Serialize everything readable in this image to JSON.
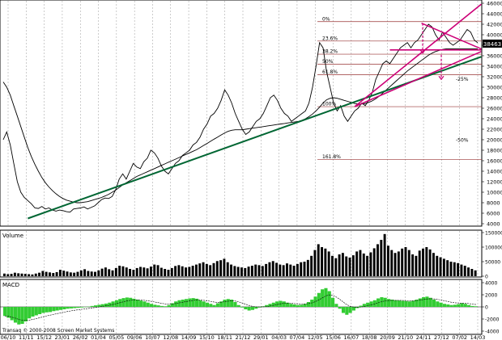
{
  "chart_data": [
    {
      "type": "line",
      "panel": "price",
      "title": "",
      "ylim": [
        4000,
        46000
      ],
      "yticks": [
        4000,
        6000,
        8000,
        10000,
        12000,
        14000,
        16000,
        18000,
        20000,
        22000,
        24000,
        26000,
        28000,
        30000,
        32000,
        34000,
        36000,
        38000,
        40000,
        42000,
        44000,
        46000
      ],
      "last_value_badge": "38463",
      "grid": true,
      "series": [
        {
          "values": [
            20000,
            21500,
            19000,
            15500,
            12000,
            10000,
            9000,
            8400,
            7800,
            7000,
            6900,
            7300,
            6800,
            7000,
            6600,
            6400,
            6600,
            6500,
            6300,
            6200,
            6800,
            6900,
            7000,
            7200,
            6800,
            7100,
            7400,
            8000,
            8600,
            8900,
            8800,
            9200,
            10500,
            12500,
            13500,
            12500,
            14000,
            15500,
            14800,
            14500,
            15800,
            16500,
            18000,
            17500,
            16500,
            15000,
            14000,
            13500,
            14500,
            15500,
            16000,
            17000,
            17500,
            18000,
            19000,
            19500,
            20500,
            22000,
            23000,
            24500,
            25000,
            26000,
            27500,
            29500,
            28500,
            27000,
            25000,
            23500,
            22000,
            21000,
            21500,
            22500,
            23500,
            24000,
            25000,
            26500,
            28000,
            28500,
            27500,
            26000,
            25000,
            24500,
            23500,
            24000,
            24500,
            25000,
            25500,
            27000,
            30000,
            34000,
            38500,
            37500,
            33000,
            30000,
            27000,
            25500,
            26500,
            24500,
            23500,
            24500,
            25500,
            26000,
            27000,
            26500,
            27500,
            29000,
            31500,
            33000,
            34500,
            35000,
            34500,
            35500,
            36500,
            37500,
            38000,
            38500,
            37500,
            38500,
            39000,
            40000,
            41000,
            42000,
            41500,
            40000,
            39000,
            40500,
            39500,
            38500,
            38000,
            38500,
            39000,
            40000,
            41000,
            40500,
            39000,
            38463
          ]
        },
        {
          "values": [
            31000,
            30000,
            28500,
            26500,
            24500,
            22500,
            20500,
            18500,
            16800,
            15300,
            14000,
            12800,
            11800,
            11000,
            10300,
            9700,
            9200,
            8800,
            8500,
            8300,
            8100,
            8000,
            8000,
            8100,
            8200,
            8400,
            8600,
            8800,
            9000,
            9300,
            9600,
            10000,
            10400,
            10900,
            11400,
            11800,
            12200,
            12600,
            13000,
            13300,
            13600,
            13900,
            14200,
            14500,
            14800,
            15100,
            15400,
            15700,
            16000,
            16300,
            16600,
            16900,
            17200,
            17500,
            17800,
            18100,
            18500,
            18900,
            19300,
            19700,
            20100,
            20500,
            20900,
            21300,
            21600,
            21800,
            21900,
            21900,
            21900,
            22000,
            22100,
            22200,
            22300,
            22400,
            22500,
            22600,
            22700,
            22800,
            22900,
            23000,
            23100,
            23200,
            23300,
            23400,
            23500,
            23700,
            24000,
            24400,
            24900,
            25500,
            26200,
            27000,
            27600,
            27900,
            28000,
            27900,
            27700,
            27500,
            27300,
            27100,
            26900,
            26800,
            26800,
            26900,
            27100,
            27400,
            27800,
            28300,
            28900,
            29500,
            30100,
            30700,
            31300,
            31900,
            32500,
            33100,
            33600,
            34100,
            34600,
            35100,
            35600,
            36100,
            36500,
            36800,
            37000,
            37200,
            37300,
            37300,
            37300,
            37300,
            37300,
            37300,
            37300,
            37300,
            37300,
            37300
          ]
        }
      ],
      "fibonacci_levels": [
        {
          "label": "0%",
          "value": 42500
        },
        {
          "label": "23.6%",
          "value": 38800
        },
        {
          "label": "38.2%",
          "value": 36300
        },
        {
          "label": "50%",
          "value": 34400
        },
        {
          "label": "61.8%",
          "value": 32400
        },
        {
          "label": "100%",
          "value": 26300
        },
        {
          "label": "161.8%",
          "value": 16200
        }
      ],
      "annotations": [
        "-25%",
        "-50%"
      ],
      "trendlines": [
        {
          "color": "#006633",
          "from": [
            7,
            5000
          ],
          "to": [
            136,
            35800
          ]
        },
        {
          "color": "#cc0077",
          "from": [
            100,
            26300
          ],
          "to": [
            136,
            45800
          ]
        },
        {
          "color": "#cc0077",
          "from": [
            100,
            26300
          ],
          "to": [
            136,
            36800
          ]
        },
        {
          "color": "#cc0077",
          "from": [
            119,
            42200
          ],
          "to": [
            136,
            37300
          ]
        },
        {
          "color": "#cc0077",
          "from": [
            110,
            37100
          ],
          "to": [
            136,
            37100
          ]
        }
      ]
    },
    {
      "type": "bar",
      "panel": "volume",
      "title": "Volume",
      "ylim": [
        0,
        150000
      ],
      "yticks": [
        {
          "label": "150000",
          "value": 150000
        },
        {
          "label": "100000",
          "value": 100000
        },
        {
          "label": "50000",
          "value": 50000
        },
        {
          "label": "0",
          "value": 0
        }
      ],
      "values": [
        9000,
        7000,
        8000,
        12000,
        10000,
        9000,
        8000,
        7000,
        6000,
        9000,
        12000,
        18000,
        15000,
        13000,
        11000,
        14000,
        22000,
        19000,
        16000,
        13000,
        12000,
        15000,
        20000,
        24000,
        18000,
        16000,
        15000,
        20000,
        26000,
        30000,
        24000,
        20000,
        28000,
        36000,
        34000,
        30000,
        25000,
        22000,
        28000,
        32000,
        30000,
        27000,
        33000,
        40000,
        38000,
        29000,
        25000,
        22000,
        28000,
        35000,
        38000,
        34000,
        30000,
        32000,
        36000,
        40000,
        44000,
        48000,
        42000,
        38000,
        45000,
        52000,
        55000,
        60000,
        48000,
        40000,
        35000,
        32000,
        30000,
        28000,
        33000,
        36000,
        40000,
        38000,
        35000,
        42000,
        48000,
        52000,
        46000,
        40000,
        38000,
        44000,
        40000,
        36000,
        42000,
        48000,
        50000,
        56000,
        70000,
        90000,
        110000,
        100000,
        95000,
        85000,
        70000,
        62000,
        75000,
        80000,
        68000,
        64000,
        72000,
        85000,
        90000,
        78000,
        70000,
        82000,
        96000,
        110000,
        125000,
        145000,
        105000,
        90000,
        80000,
        85000,
        95000,
        100000,
        90000,
        75000,
        70000,
        88000,
        95000,
        100000,
        92000,
        80000,
        70000,
        65000,
        60000,
        55000,
        50000,
        48000,
        45000,
        40000,
        36000,
        30000,
        25000,
        20000
      ]
    },
    {
      "type": "bar",
      "panel": "macd",
      "title": "MACD",
      "ylim": [
        -4000,
        4000
      ],
      "yticks": [
        {
          "label": "4000",
          "value": 4000
        },
        {
          "label": "2000",
          "value": 2000
        },
        {
          "label": "0",
          "value": 0
        },
        {
          "label": "-2000",
          "value": -2000
        },
        {
          "label": "-4000",
          "value": -4000
        }
      ],
      "values": [
        -1500,
        -1800,
        -2200,
        -2600,
        -2900,
        -2800,
        -2400,
        -1900,
        -1600,
        -1400,
        -1200,
        -1000,
        -900,
        -850,
        -700,
        -600,
        -500,
        -400,
        -300,
        -250,
        -200,
        -150,
        -100,
        -50,
        50,
        150,
        250,
        350,
        450,
        550,
        700,
        900,
        1100,
        1300,
        1450,
        1550,
        1500,
        1350,
        1200,
        1050,
        900,
        700,
        500,
        350,
        250,
        150,
        100,
        300,
        600,
        900,
        1100,
        1200,
        1300,
        1400,
        1450,
        1350,
        1100,
        900,
        700,
        500,
        300,
        600,
        900,
        1200,
        1300,
        1200,
        800,
        300,
        -100,
        -400,
        -600,
        -500,
        -300,
        -100,
        100,
        300,
        500,
        700,
        900,
        1000,
        900,
        700,
        500,
        400,
        300,
        350,
        500,
        800,
        1200,
        1700,
        2300,
        2900,
        3100,
        2600,
        1500,
        500,
        -300,
        -1000,
        -1300,
        -1000,
        -600,
        -200,
        200,
        500,
        700,
        900,
        1100,
        1400,
        1600,
        1500,
        1300,
        1200,
        1100,
        1050,
        1000,
        950,
        900,
        1000,
        1200,
        1400,
        1600,
        1700,
        1500,
        1200,
        900,
        700,
        500,
        400,
        300,
        350,
        450,
        600,
        500,
        300,
        150,
        100
      ]
    }
  ],
  "x_labels": [
    "06/10",
    "11/11",
    "15/12",
    "23/01",
    "26/02",
    "01/04",
    "05/05",
    "09/06",
    "10/07",
    "12/08",
    "14/09",
    "15/10",
    "18/11",
    "21/12",
    "29/01",
    "04/03",
    "07/04",
    "12/05",
    "15/06",
    "16/07",
    "18/08",
    "20/09",
    "21/10",
    "24/11",
    "27/12",
    "07/02",
    "14/03"
  ],
  "copyright": "Transaq © 2000-2008 Screen Market Systems",
  "colors": {
    "price": "#000000",
    "moving_average": "#000000",
    "trend_support": "#006633",
    "triangle": "#cc0077",
    "fibonacci": "#993333",
    "volume": "#000000",
    "macd_histogram": "#33cc33",
    "macd_signal": "#000000"
  }
}
